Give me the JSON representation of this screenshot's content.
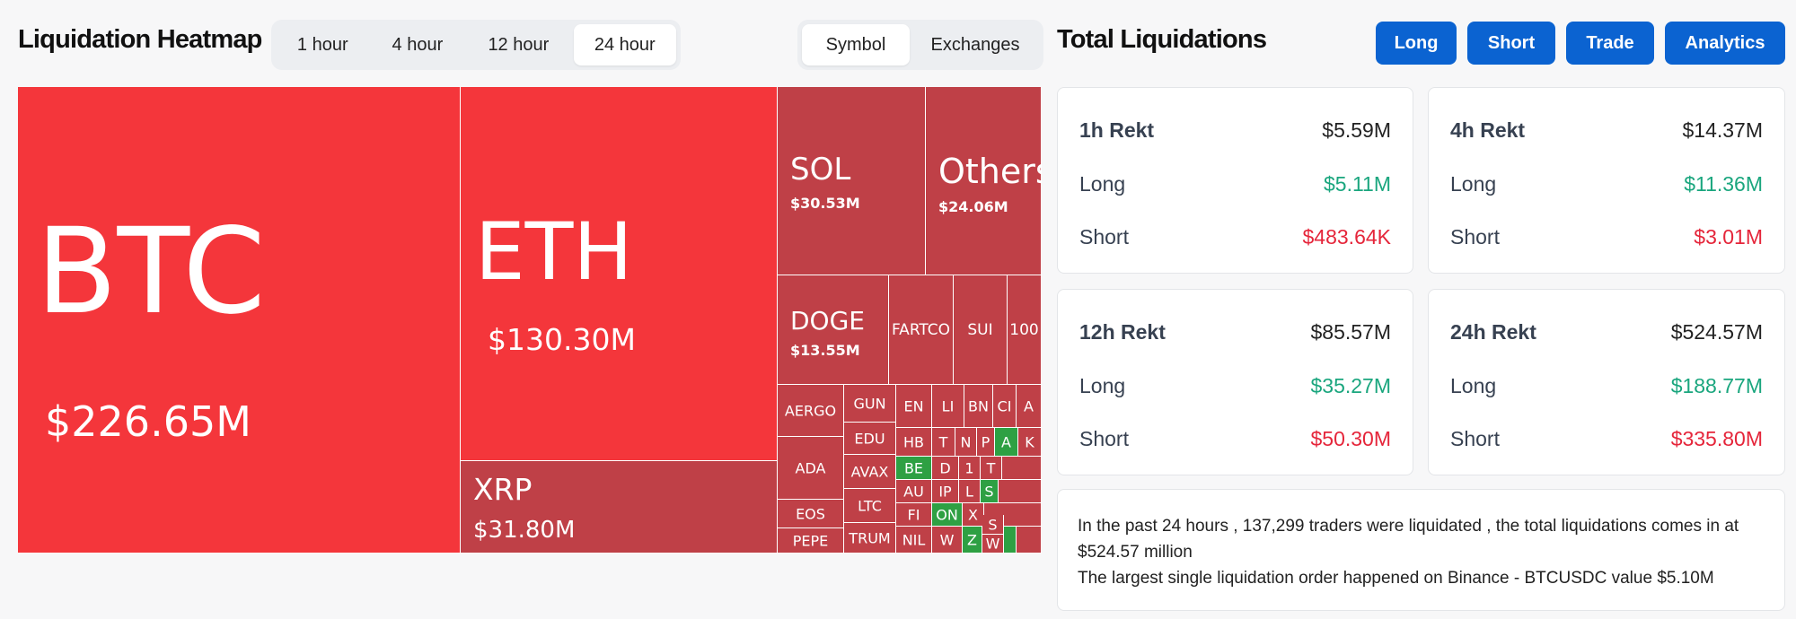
{
  "heatmap": {
    "title": "Liquidation Heatmap",
    "time_options": [
      "1 hour",
      "4 hour",
      "12 hour",
      "24 hour"
    ],
    "time_selected": "24 hour",
    "view_options": [
      "Symbol",
      "Exchanges"
    ],
    "view_selected": "Symbol",
    "cells": {
      "btc": {
        "symbol": "BTC",
        "value": "$226.65M"
      },
      "eth": {
        "symbol": "ETH",
        "value": "$130.30M"
      },
      "xrp": {
        "symbol": "XRP",
        "value": "$31.80M"
      },
      "sol": {
        "symbol": "SOL",
        "value": "$30.53M"
      },
      "others": {
        "symbol": "Others",
        "value": "$24.06M"
      },
      "doge": {
        "symbol": "DOGE",
        "value": "$13.55M"
      },
      "fartcoin": "FARTCO",
      "sui": "SUI",
      "c100": "100",
      "aergo": "AERGO",
      "gun": "GUN",
      "ada": "ADA",
      "edu": "EDU",
      "avax": "AVAX",
      "eos": "EOS",
      "ltc": "LTC",
      "pepe": "PEPE",
      "trump": "TRUM",
      "en": "EN",
      "li": "LI",
      "bn": "BN",
      "ci": "CI",
      "a1": "A",
      "hb": "HB",
      "t1": "T",
      "n1": "N",
      "p1": "P",
      "a2": "A",
      "k1": "K",
      "be": "BE",
      "d1": "D",
      "one": "1",
      "t2": "T",
      "au": "AU",
      "ip": "IP",
      "l2": "L",
      "s1": "S",
      "fi": "FI",
      "on": "ON",
      "x1": "X",
      "nil": "NIL",
      "w1": "W",
      "z1": "Z",
      "s2": "S",
      "w2": "W"
    }
  },
  "totals": {
    "title": "Total Liquidations",
    "buttons": {
      "long": "Long",
      "short": "Short",
      "trade": "Trade",
      "analytics": "Analytics"
    },
    "cards": [
      {
        "label": "1h Rekt",
        "total": "$5.59M",
        "long_label": "Long",
        "long": "$5.11M",
        "short_label": "Short",
        "short": "$483.64K"
      },
      {
        "label": "4h Rekt",
        "total": "$14.37M",
        "long_label": "Long",
        "long": "$11.36M",
        "short_label": "Short",
        "short": "$3.01M"
      },
      {
        "label": "12h Rekt",
        "total": "$85.57M",
        "long_label": "Long",
        "long": "$35.27M",
        "short_label": "Short",
        "short": "$50.30M"
      },
      {
        "label": "24h Rekt",
        "total": "$524.57M",
        "long_label": "Long",
        "long": "$188.77M",
        "short_label": "Short",
        "short": "$335.80M"
      }
    ],
    "summary_line1": "In the past 24 hours , 137,299 traders were liquidated , the total liquidations comes in at $524.57 million",
    "summary_line2": "The largest single liquidation order happened on Binance - BTCUSDC value $5.10M"
  },
  "colors": {
    "long_bright": "#f4363b",
    "long_dark": "#bf4047",
    "short_green": "#2ea043",
    "button_blue": "#0b63d1",
    "up_green": "#1aa67e",
    "down_red": "#e5253a"
  }
}
